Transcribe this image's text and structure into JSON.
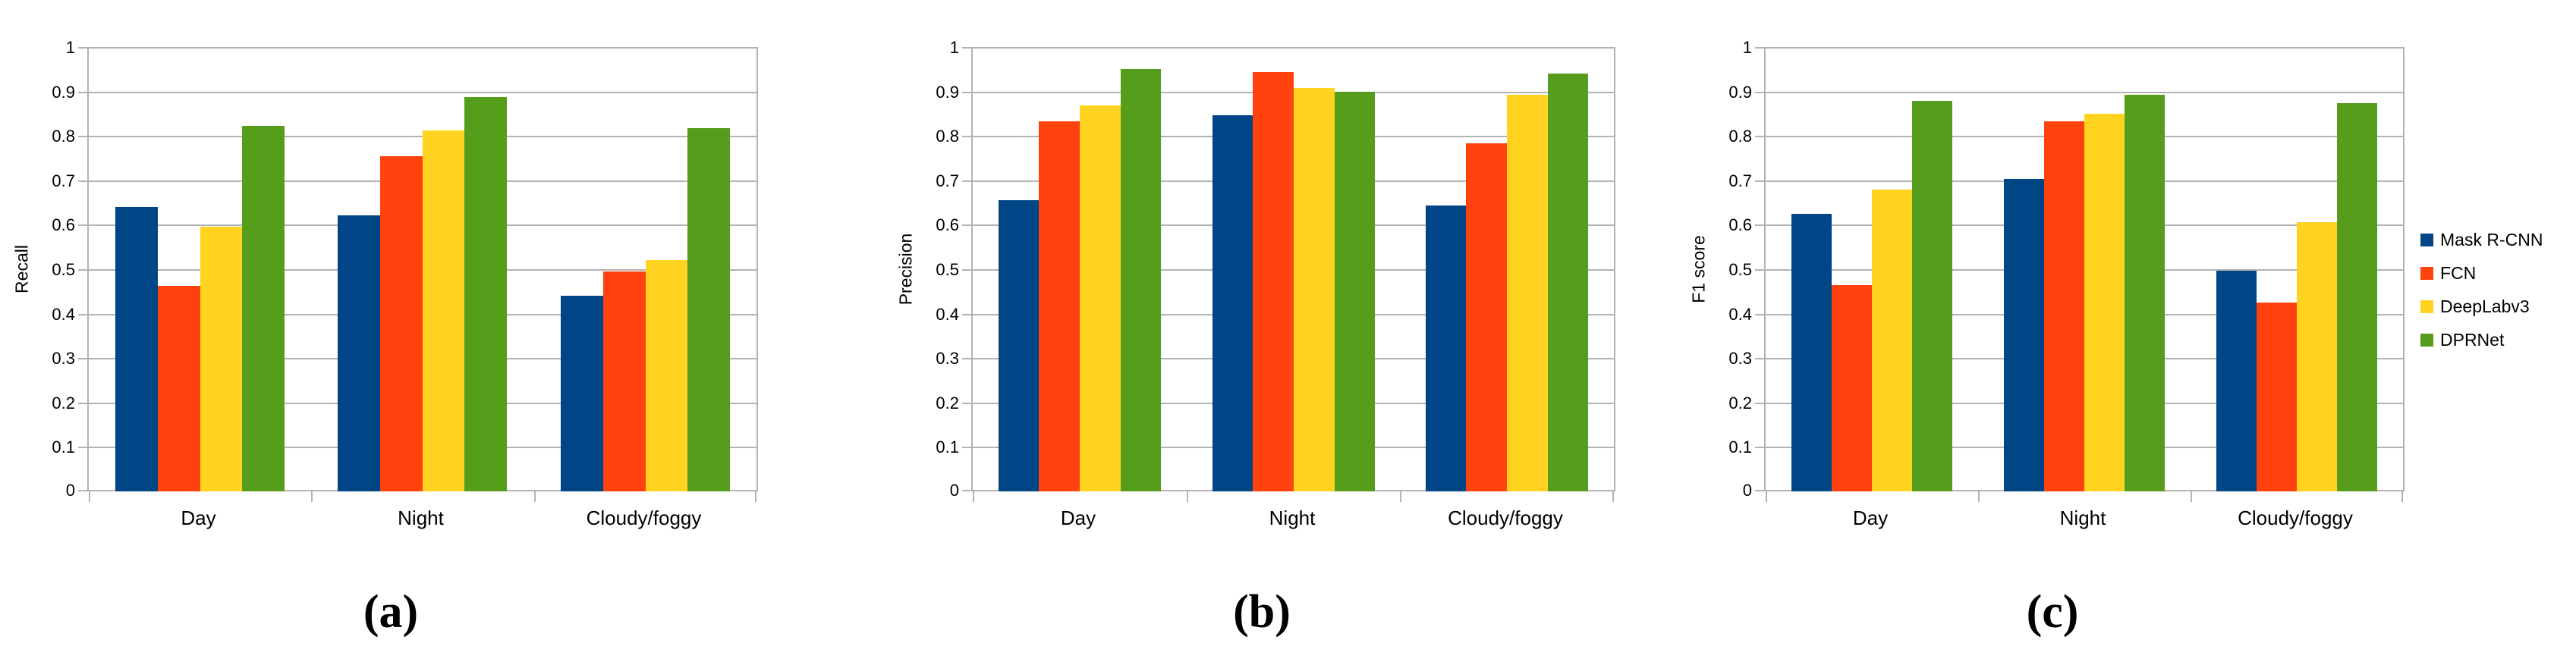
{
  "figure": {
    "background": "#ffffff",
    "gridline_color": "#b3b3b3",
    "text_color": "#000000"
  },
  "palette": {
    "mask_r_cnn": "#004586",
    "fcn": "#FF420E",
    "deeplabv3": "#FFD320",
    "dprnet": "#579D1C"
  },
  "legend": {
    "position": "right",
    "items": [
      {
        "label": "Mask R-CNN",
        "color": "#004586"
      },
      {
        "label": "FCN",
        "color": "#FF420E"
      },
      {
        "label": "DeepLabv3",
        "color": "#FFD320"
      },
      {
        "label": "DPRNet",
        "color": "#579D1C"
      }
    ]
  },
  "chart_data": [
    {
      "id": "a",
      "type": "bar",
      "title": "",
      "xlabel": "",
      "ylabel": "Recall",
      "caption": "(a)",
      "categories": [
        "Day",
        "Night",
        "Cloudy/foggy"
      ],
      "ylim": [
        0,
        1
      ],
      "ytick_labels": [
        "0",
        "0.1",
        "0.2",
        "0.3",
        "0.4",
        "0.5",
        "0.6",
        "0.7",
        "0.8",
        "0.9",
        "1"
      ],
      "grid": true,
      "series": [
        {
          "name": "Mask R-CNN",
          "color": "#004586",
          "values": [
            0.64,
            0.621,
            0.44
          ]
        },
        {
          "name": "FCN",
          "color": "#FF420E",
          "values": [
            0.462,
            0.754,
            0.495
          ]
        },
        {
          "name": "DeepLabv3",
          "color": "#FFD320",
          "values": [
            0.595,
            0.813,
            0.52
          ]
        },
        {
          "name": "DPRNet",
          "color": "#579D1C",
          "values": [
            0.823,
            0.888,
            0.818
          ]
        }
      ]
    },
    {
      "id": "b",
      "type": "bar",
      "title": "",
      "xlabel": "",
      "ylabel": "Precision",
      "caption": "(b)",
      "categories": [
        "Day",
        "Night",
        "Cloudy/foggy"
      ],
      "ylim": [
        0,
        1
      ],
      "ytick_labels": [
        "0",
        "0.1",
        "0.2",
        "0.3",
        "0.4",
        "0.5",
        "0.6",
        "0.7",
        "0.8",
        "0.9",
        "1"
      ],
      "grid": true,
      "series": [
        {
          "name": "Mask R-CNN",
          "color": "#004586",
          "values": [
            0.655,
            0.847,
            0.644
          ]
        },
        {
          "name": "FCN",
          "color": "#FF420E",
          "values": [
            0.833,
            0.944,
            0.783
          ]
        },
        {
          "name": "DeepLabv3",
          "color": "#FFD320",
          "values": [
            0.868,
            0.908,
            0.893
          ]
        },
        {
          "name": "DPRNet",
          "color": "#579D1C",
          "values": [
            0.95,
            0.9,
            0.94
          ]
        }
      ]
    },
    {
      "id": "c",
      "type": "bar",
      "title": "",
      "xlabel": "",
      "ylabel": "F1 score",
      "caption": "(c)",
      "categories": [
        "Day",
        "Night",
        "Cloudy/foggy"
      ],
      "ylim": [
        0,
        1
      ],
      "ytick_labels": [
        "0",
        "0.1",
        "0.2",
        "0.3",
        "0.4",
        "0.5",
        "0.6",
        "0.7",
        "0.8",
        "0.9",
        "1"
      ],
      "grid": true,
      "series": [
        {
          "name": "Mask R-CNN",
          "color": "#004586",
          "values": [
            0.625,
            0.703,
            0.496
          ]
        },
        {
          "name": "FCN",
          "color": "#FF420E",
          "values": [
            0.465,
            0.833,
            0.425
          ]
        },
        {
          "name": "DeepLabv3",
          "color": "#FFD320",
          "values": [
            0.68,
            0.85,
            0.605
          ]
        },
        {
          "name": "DPRNet",
          "color": "#579D1C",
          "values": [
            0.878,
            0.893,
            0.873
          ]
        }
      ]
    }
  ]
}
